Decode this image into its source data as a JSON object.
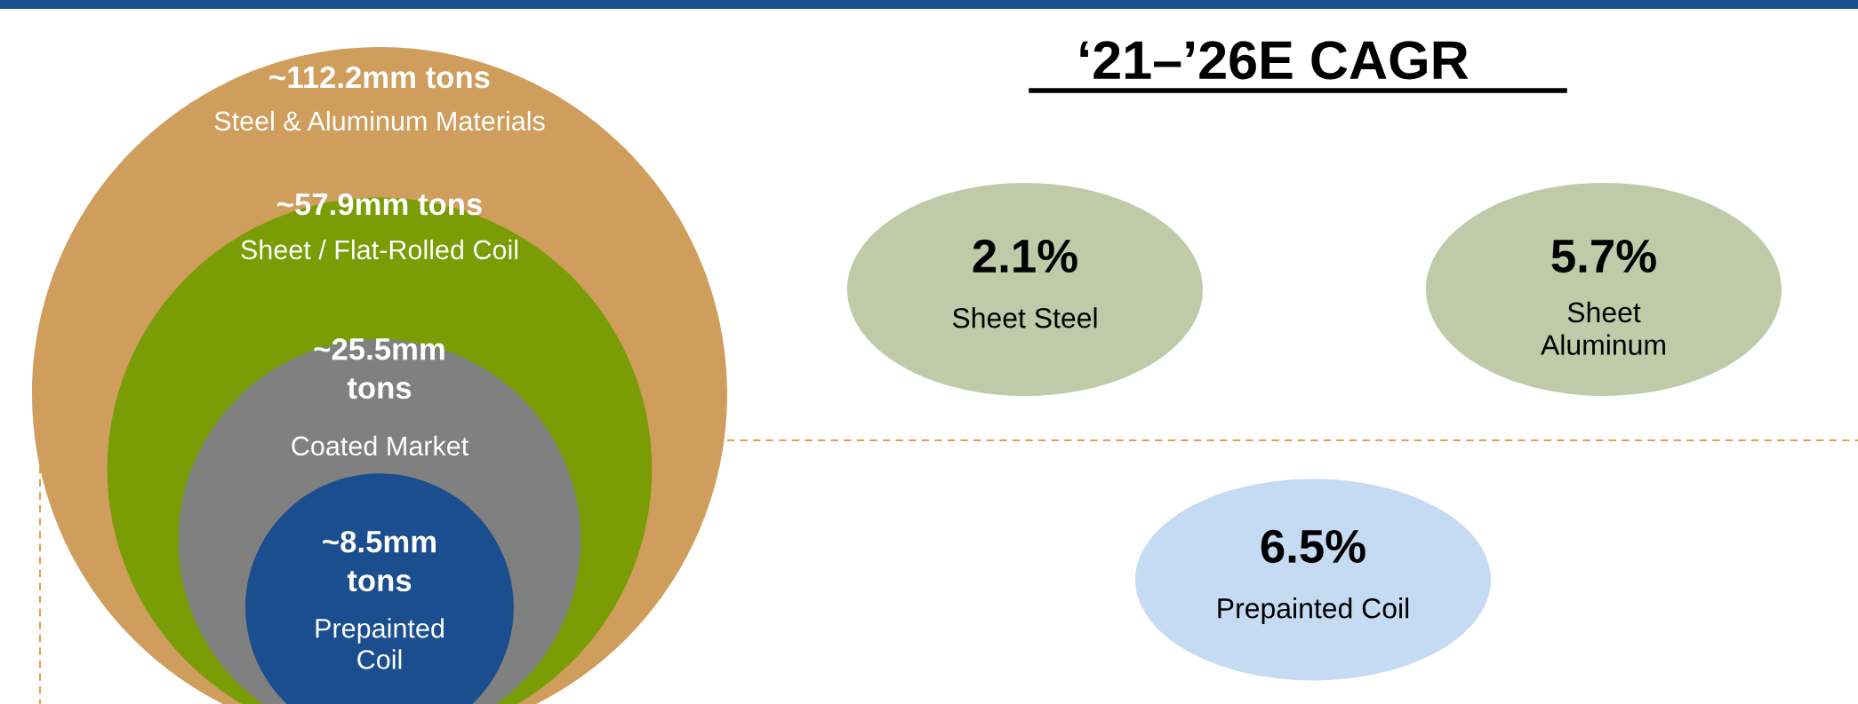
{
  "chart_data": [
    {
      "type": "other",
      "categories": [
        "Steel & Aluminum Materials",
        "Sheet / Flat-Rolled Coil",
        "Coated Market",
        "Prepainted\nCoil"
      ],
      "values": [
        112.2,
        57.9,
        25.5,
        8.5
      ],
      "value_labels": [
        "~112.2mm tons",
        "~57.9mm tons",
        "~25.5mm\ntons",
        "~8.5mm\ntons"
      ],
      "colors": [
        "#cf9e5c",
        "#7a9c05",
        "#808080",
        "#1a4e8e"
      ]
    },
    {
      "type": "other",
      "title": "‘21–’26E CAGR",
      "categories": [
        "Sheet Steel",
        "Sheet\nAluminum",
        "Prepainted Coil"
      ],
      "value_labels": [
        "2.1%",
        "5.7%",
        "6.5%"
      ],
      "colors": [
        "#c0caa8",
        "#c0caa8",
        "#c5dbf3"
      ]
    }
  ]
}
